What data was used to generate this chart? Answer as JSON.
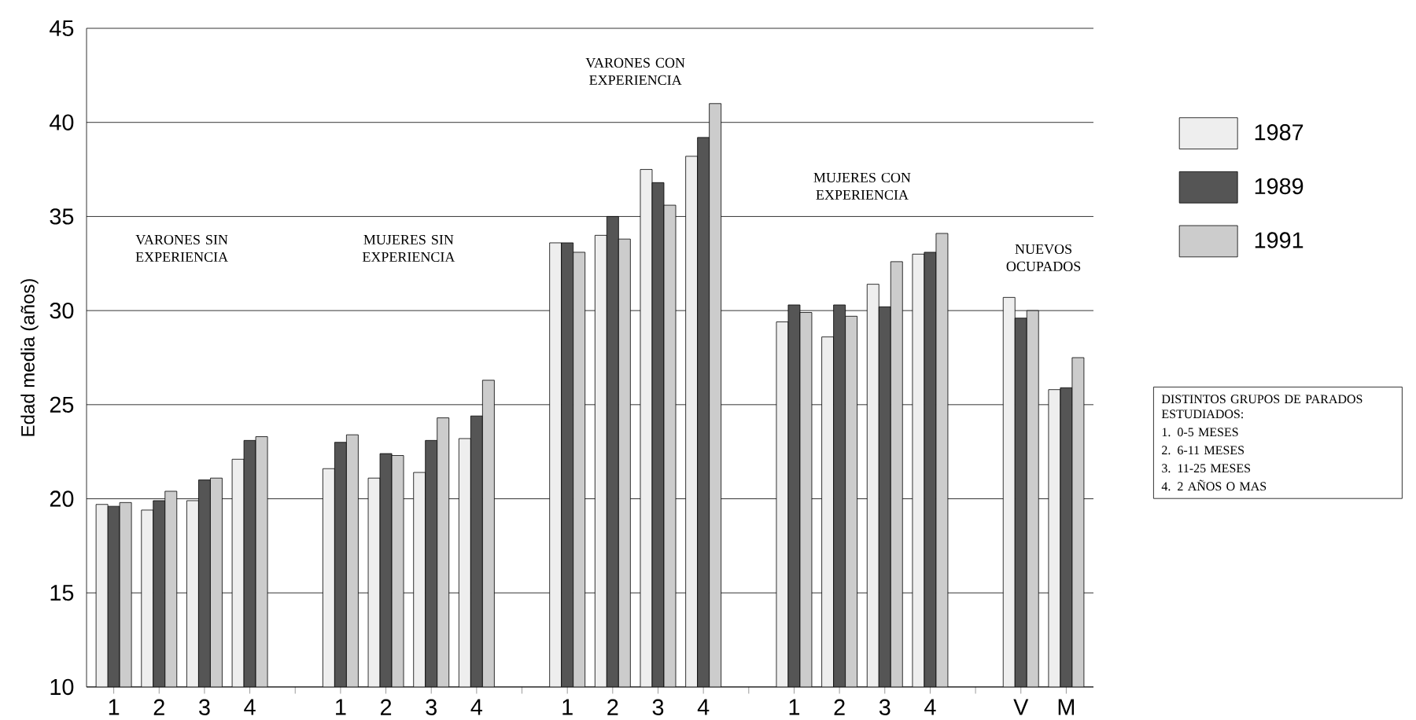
{
  "chart_data": {
    "type": "bar",
    "ylabel": "Edad media (años)",
    "categories": [
      "1",
      "2",
      "3",
      "4",
      null,
      "1",
      "2",
      "3",
      "4",
      null,
      "1",
      "2",
      "3",
      "4",
      null,
      "1",
      "2",
      "3",
      "4",
      null,
      "V",
      "M"
    ],
    "series": [
      {
        "name": "1987",
        "color": "#eeeeee",
        "values": [
          19.7,
          19.4,
          19.9,
          22.1,
          null,
          21.6,
          21.1,
          21.4,
          23.2,
          null,
          33.6,
          34.0,
          37.5,
          38.2,
          null,
          29.4,
          28.6,
          31.4,
          33.0,
          null,
          30.7,
          25.8
        ]
      },
      {
        "name": "1989",
        "color": "#555555",
        "values": [
          19.6,
          19.9,
          21.0,
          23.1,
          null,
          23.0,
          22.4,
          23.1,
          24.4,
          null,
          33.6,
          35.0,
          36.8,
          39.2,
          null,
          30.3,
          30.3,
          30.2,
          33.1,
          null,
          29.6,
          25.9
        ]
      },
      {
        "name": "1991",
        "color": "#cccccc",
        "values": [
          19.8,
          20.4,
          21.1,
          23.3,
          null,
          23.4,
          22.3,
          24.3,
          26.3,
          null,
          33.1,
          33.8,
          35.6,
          41.0,
          null,
          29.9,
          29.7,
          32.6,
          34.1,
          null,
          30.0,
          27.5
        ]
      }
    ],
    "ylim": [
      10,
      45
    ],
    "yticks": [
      10,
      15,
      20,
      25,
      30,
      35,
      40,
      45
    ],
    "grid": "y",
    "legend": "right",
    "annotations": [
      "VARONES SIN EXPERIENCIA",
      "MUJERES SIN EXPERIENCIA",
      "VARONES CON EXPERIENCIA",
      "MUJERES CON EXPERIENCIA",
      "NUEVOS OCUPADOS",
      "DISTINTOS GRUPOS DE PARADOS ESTUDIADOS:",
      "1. 0-5 MESES",
      "2. 6-11 MESES",
      "3. 11-25 MESES",
      "4. 2 AÑOS O MAS"
    ]
  }
}
